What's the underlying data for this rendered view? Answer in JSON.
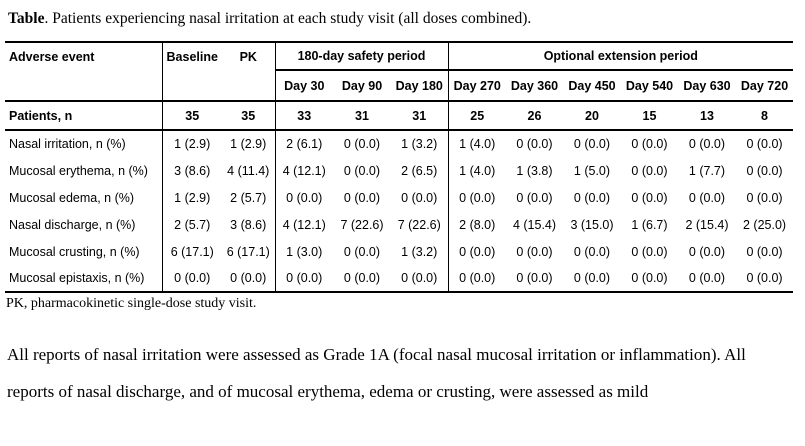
{
  "title": {
    "label": "Table",
    "text": ". Patients experiencing nasal irritation at each study visit (all doses combined)."
  },
  "table": {
    "corner_header": "Adverse event",
    "visit_headers": {
      "baseline": "Baseline",
      "pk": "PK"
    },
    "groups": [
      {
        "label": "180-day safety period",
        "columns": [
          "Day 30",
          "Day 90",
          "Day 180"
        ]
      },
      {
        "label": "Optional extension period",
        "columns": [
          "Day 270",
          "Day 360",
          "Day 450",
          "Day 540",
          "Day 630",
          "Day 720"
        ]
      }
    ],
    "patients_row": {
      "label": "Patients, n",
      "values": [
        "35",
        "35",
        "33",
        "31",
        "31",
        "25",
        "26",
        "20",
        "15",
        "13",
        "8"
      ]
    },
    "rows": [
      {
        "label": "Nasal irritation, n (%)",
        "values": [
          "1 (2.9)",
          "1 (2.9)",
          "2 (6.1)",
          "0 (0.0)",
          "1 (3.2)",
          "1 (4.0)",
          "0 (0.0)",
          "0 (0.0)",
          "0 (0.0)",
          "0 (0.0)",
          "0 (0.0)"
        ]
      },
      {
        "label": "Mucosal erythema, n (%)",
        "values": [
          "3 (8.6)",
          "4 (11.4)",
          "4 (12.1)",
          "0 (0.0)",
          "2 (6.5)",
          "1 (4.0)",
          "1 (3.8)",
          "1 (5.0)",
          "0 (0.0)",
          "1 (7.7)",
          "0 (0.0)"
        ]
      },
      {
        "label": "Mucosal edema, n (%)",
        "values": [
          "1 (2.9)",
          "2 (5.7)",
          "0 (0.0)",
          "0 (0.0)",
          "0 (0.0)",
          "0 (0.0)",
          "0 (0.0)",
          "0 (0.0)",
          "0 (0.0)",
          "0 (0.0)",
          "0 (0.0)"
        ]
      },
      {
        "label": "Nasal discharge, n (%)",
        "values": [
          "2 (5.7)",
          "3 (8.6)",
          "4 (12.1)",
          "7 (22.6)",
          "7 (22.6)",
          "2 (8.0)",
          "4 (15.4)",
          "3 (15.0)",
          "1 (6.7)",
          "2 (15.4)",
          "2 (25.0)"
        ]
      },
      {
        "label": "Mucosal crusting, n (%)",
        "values": [
          "6 (17.1)",
          "6 (17.1)",
          "1 (3.0)",
          "0 (0.0)",
          "1 (3.2)",
          "0 (0.0)",
          "0 (0.0)",
          "0 (0.0)",
          "0 (0.0)",
          "0 (0.0)",
          "0 (0.0)"
        ]
      },
      {
        "label": "Mucosal epistaxis, n (%)",
        "values": [
          "0 (0.0)",
          "0 (0.0)",
          "0 (0.0)",
          "0 (0.0)",
          "0 (0.0)",
          "0 (0.0)",
          "0 (0.0)",
          "0 (0.0)",
          "0 (0.0)",
          "0 (0.0)",
          "0 (0.0)"
        ]
      }
    ]
  },
  "footnote": "PK, pharmacokinetic single-dose study visit.",
  "paragraph": "All reports of nasal irritation were assessed as Grade 1A (focal nasal mucosal irritation or inflammation). All reports of nasal discharge, and of mucosal erythema, edema or crusting, were assessed as mild",
  "colors": {
    "text": "#000000",
    "background": "#ffffff",
    "border": "#000000"
  }
}
